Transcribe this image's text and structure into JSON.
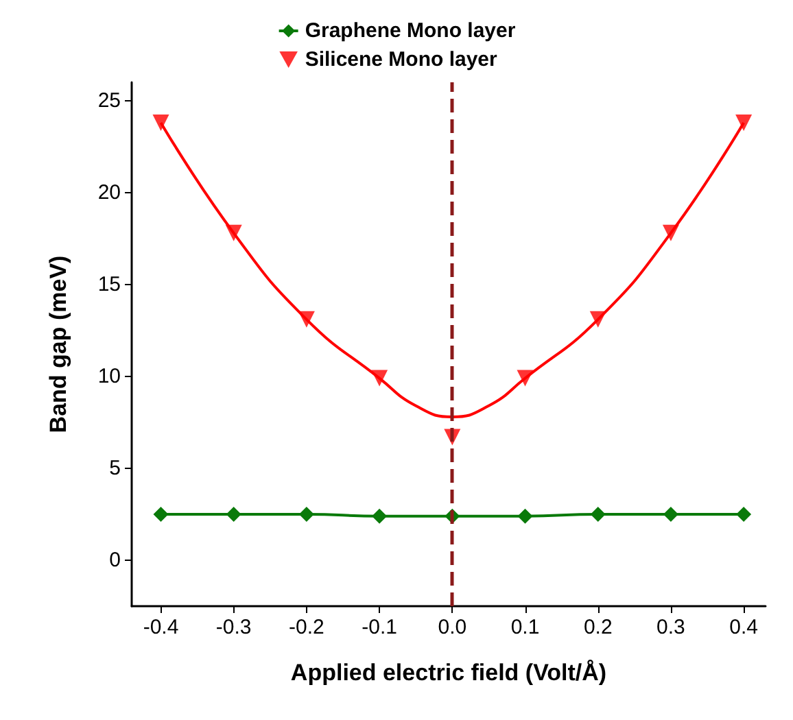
{
  "chart_data": {
    "type": "line",
    "xlabel": "Applied electric field (Volt/Å)",
    "ylabel": "Band gap (meV)",
    "x": [
      -0.4,
      -0.3,
      -0.2,
      -0.1,
      0.0,
      0.1,
      0.2,
      0.3,
      0.4
    ],
    "series": [
      {
        "name": "Graphene Mono layer",
        "color": "#0a7a0a",
        "marker": "diamond",
        "values": [
          2.5,
          2.5,
          2.5,
          2.4,
          2.4,
          2.4,
          2.5,
          2.5,
          2.5
        ]
      },
      {
        "name": "Silicene Mono layer",
        "type": "scatter",
        "color": "#ff0000",
        "marker": "triangle",
        "values": [
          23.8,
          17.8,
          13.1,
          9.9,
          6.7,
          9.9,
          13.1,
          17.8,
          23.8
        ]
      },
      {
        "color": "#ff0000",
        "marker": "none",
        "x": [
          -0.4,
          -0.3,
          -0.2,
          -0.1,
          -0.05,
          0.0,
          0.05,
          0.1,
          0.2,
          0.3,
          0.4
        ],
        "values": [
          23.8,
          17.8,
          13.1,
          9.9,
          8.4,
          7.8,
          8.4,
          9.9,
          13.1,
          17.8,
          23.8
        ]
      }
    ],
    "xlim": [
      -0.44,
      0.43
    ],
    "xticks": [
      -0.4,
      -0.3,
      -0.2,
      -0.1,
      {
        "value": 0,
        "label": "0.0"
      },
      0.1,
      0.2,
      0.3,
      0.4
    ],
    "ylim": [
      -2.5,
      26
    ],
    "yticks": [
      0,
      5,
      10,
      15,
      20,
      25
    ],
    "ref_lines": [
      {
        "axis": "x",
        "value": 0,
        "color": "#8b1a1a",
        "line_style": "dashed"
      }
    ],
    "legend": "top",
    "grid": false
  }
}
